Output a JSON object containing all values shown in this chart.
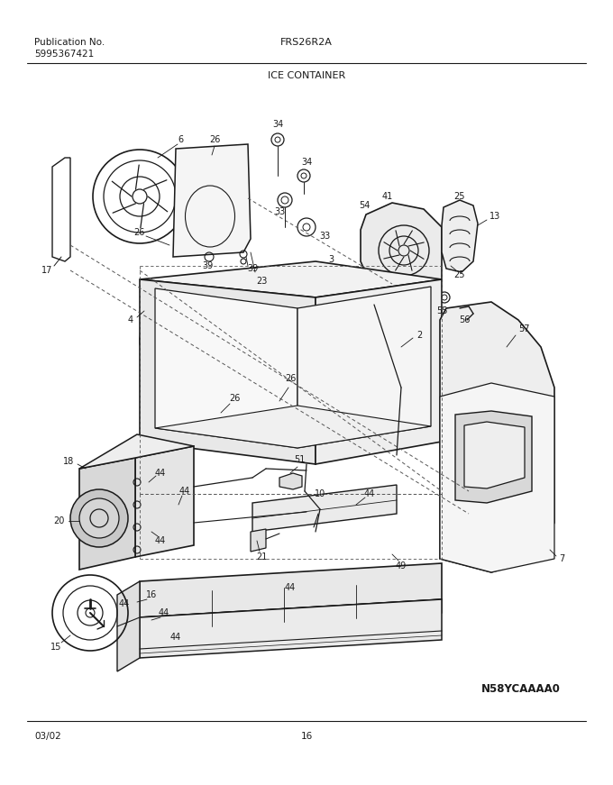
{
  "page_title_left_line1": "Publication No.",
  "page_title_left_line2": "5995367421",
  "page_title_center": "FRS26R2A",
  "section_title": "ICE CONTAINER",
  "bottom_left": "03/02",
  "bottom_center": "16",
  "bottom_right_code": "N58YCAAAA0",
  "bg_color": "#ffffff",
  "line_color": "#1a1a1a",
  "text_color": "#1a1a1a",
  "fig_width": 6.8,
  "fig_height": 8.71,
  "dpi": 100
}
